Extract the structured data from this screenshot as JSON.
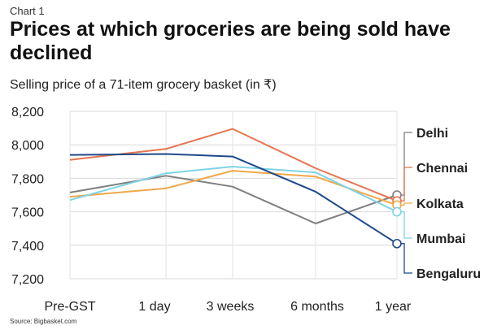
{
  "header": {
    "kicker": "Chart 1",
    "title": "Prices at which groceries are being sold have declined",
    "subtitle": "Selling price of a 71-item grocery basket (in ₹)"
  },
  "source": "Source: Bigbasket.com",
  "chart_data": {
    "type": "line",
    "categories": [
      "Pre-GST",
      "1 day",
      "3 weeks",
      "6 months",
      "1 year"
    ],
    "ylim": [
      7200,
      8200
    ],
    "yticks": [
      7200,
      7400,
      7600,
      7800,
      8000,
      8200
    ],
    "ytick_labels": [
      "7,200",
      "7,400",
      "7,600",
      "7,800",
      "8,000",
      "8,200"
    ],
    "grid": "horizontal",
    "legend": "direct labels at right end",
    "series": [
      {
        "name": "Delhi",
        "color": "#7f7f7f",
        "values": [
          7715,
          7815,
          7750,
          7530,
          7700
        ]
      },
      {
        "name": "Chennai",
        "color": "#e8744f",
        "values": [
          7910,
          7975,
          8095,
          7860,
          7665
        ]
      },
      {
        "name": "Kolkata",
        "color": "#f0a84a",
        "values": [
          7690,
          7740,
          7845,
          7810,
          7640
        ]
      },
      {
        "name": "Mumbai",
        "color": "#7fd3e6",
        "values": [
          7670,
          7830,
          7870,
          7835,
          7600
        ]
      },
      {
        "name": "Bengaluru",
        "color": "#1f4a8c",
        "values": [
          7940,
          7945,
          7930,
          7720,
          7410
        ]
      }
    ]
  }
}
